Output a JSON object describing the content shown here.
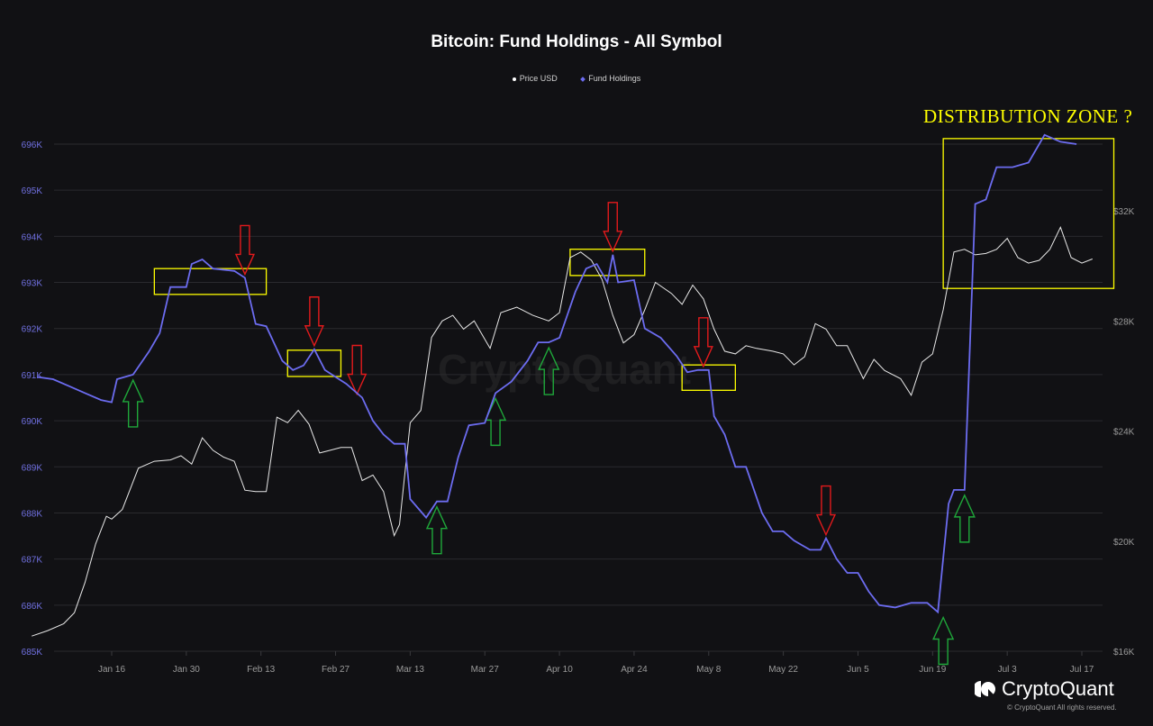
{
  "header": {
    "title": "Bitcoin: Fund Holdings - All Symbol",
    "legend": [
      {
        "label": "Price USD",
        "color": "#ffffff",
        "marker": "circle"
      },
      {
        "label": "Fund Holdings",
        "color": "#6c6cf0",
        "marker": "diamond"
      }
    ]
  },
  "annotation": {
    "zone_label": "DISTRIBUTION ZONE ?",
    "colors": {
      "zone": "#ffff00",
      "sell_arrow": "#e31a1c",
      "buy_arrow": "#1fa83a"
    }
  },
  "watermark": "CryptoQuant",
  "footer": {
    "brand": "CryptoQuant",
    "copyright": "© CryptoQuant All rights reserved."
  },
  "chart_data": {
    "type": "line",
    "title": "Bitcoin: Fund Holdings - All Symbol",
    "xlabel": "",
    "ylabel_left": "Fund Holdings",
    "ylabel_right": "Price USD",
    "x_ticks": [
      "Jan 16",
      "Jan 30",
      "Feb 13",
      "Feb 27",
      "Mar 13",
      "Mar 27",
      "Apr 10",
      "Apr 24",
      "May 8",
      "May 22",
      "Jun 5",
      "Jun 19",
      "Jul 3",
      "Jul 17"
    ],
    "y_left_ticks": [
      "685K",
      "686K",
      "687K",
      "688K",
      "689K",
      "690K",
      "691K",
      "692K",
      "693K",
      "694K",
      "695K",
      "696K"
    ],
    "y_left_range": [
      685000,
      696000
    ],
    "y_right_ticks": [
      "$16K",
      "$20K",
      "$24K",
      "$28K",
      "$32K"
    ],
    "y_right_range": [
      16000,
      32000
    ],
    "grid": true,
    "legend_position": "top",
    "series": [
      {
        "name": "Fund Holdings",
        "axis": "left",
        "color": "#6c6cf0",
        "points_date_value": [
          [
            "Jan 2",
            690950
          ],
          [
            "Jan 5",
            690900
          ],
          [
            "Jan 8",
            690750
          ],
          [
            "Jan 11",
            690600
          ],
          [
            "Jan 14",
            690450
          ],
          [
            "Jan 16",
            690400
          ],
          [
            "Jan 17",
            690900
          ],
          [
            "Jan 20",
            691000
          ],
          [
            "Jan 23",
            691500
          ],
          [
            "Jan 25",
            691900
          ],
          [
            "Jan 27",
            692900
          ],
          [
            "Jan 30",
            692900
          ],
          [
            "Jan 31",
            693400
          ],
          [
            "Feb 2",
            693500
          ],
          [
            "Feb 4",
            693300
          ],
          [
            "Feb 8",
            693250
          ],
          [
            "Feb 10",
            693100
          ],
          [
            "Feb 12",
            692100
          ],
          [
            "Feb 14",
            692050
          ],
          [
            "Feb 17",
            691300
          ],
          [
            "Feb 19",
            691100
          ],
          [
            "Feb 21",
            691200
          ],
          [
            "Feb 23",
            691550
          ],
          [
            "Feb 25",
            691100
          ],
          [
            "Feb 27",
            690950
          ],
          [
            "Mar 1",
            690800
          ],
          [
            "Mar 4",
            690500
          ],
          [
            "Mar 6",
            690000
          ],
          [
            "Mar 8",
            689700
          ],
          [
            "Mar 10",
            689500
          ],
          [
            "Mar 12",
            689500
          ],
          [
            "Mar 13",
            688300
          ],
          [
            "Mar 16",
            687900
          ],
          [
            "Mar 18",
            688250
          ],
          [
            "Mar 20",
            688250
          ],
          [
            "Mar 22",
            689200
          ],
          [
            "Mar 24",
            689900
          ],
          [
            "Mar 27",
            689950
          ],
          [
            "Mar 29",
            690600
          ],
          [
            "Apr 1",
            690850
          ],
          [
            "Apr 4",
            691300
          ],
          [
            "Apr 6",
            691700
          ],
          [
            "Apr 8",
            691700
          ],
          [
            "Apr 10",
            691800
          ],
          [
            "Apr 13",
            692800
          ],
          [
            "Apr 15",
            693300
          ],
          [
            "Apr 17",
            693400
          ],
          [
            "Apr 19",
            693000
          ],
          [
            "Apr 20",
            693600
          ],
          [
            "Apr 21",
            693000
          ],
          [
            "Apr 24",
            693050
          ],
          [
            "Apr 26",
            692000
          ],
          [
            "Apr 29",
            691800
          ],
          [
            "May 2",
            691400
          ],
          [
            "May 4",
            691050
          ],
          [
            "May 6",
            691100
          ],
          [
            "May 8",
            691100
          ],
          [
            "May 9",
            690100
          ],
          [
            "May 11",
            689700
          ],
          [
            "May 13",
            689000
          ],
          [
            "May 15",
            689000
          ],
          [
            "May 18",
            688000
          ],
          [
            "May 20",
            687600
          ],
          [
            "May 22",
            687600
          ],
          [
            "May 24",
            687400
          ],
          [
            "May 27",
            687200
          ],
          [
            "May 29",
            687200
          ],
          [
            "May 30",
            687450
          ],
          [
            "Jun 1",
            687000
          ],
          [
            "Jun 3",
            686700
          ],
          [
            "Jun 5",
            686700
          ],
          [
            "Jun 7",
            686300
          ],
          [
            "Jun 9",
            686000
          ],
          [
            "Jun 12",
            685950
          ],
          [
            "Jun 15",
            686050
          ],
          [
            "Jun 18",
            686050
          ],
          [
            "Jun 20",
            685850
          ],
          [
            "Jun 22",
            688200
          ],
          [
            "Jun 23",
            688500
          ],
          [
            "Jun 25",
            688500
          ],
          [
            "Jun 27",
            694700
          ],
          [
            "Jun 29",
            694800
          ],
          [
            "Jul 1",
            695500
          ],
          [
            "Jul 4",
            695500
          ],
          [
            "Jul 7",
            695600
          ],
          [
            "Jul 10",
            696200
          ],
          [
            "Jul 13",
            696050
          ],
          [
            "Jul 16",
            696000
          ]
        ]
      },
      {
        "name": "Price USD",
        "axis": "right",
        "color": "#ffffff",
        "points_date_value": [
          [
            "Jan 1",
            16550
          ],
          [
            "Jan 4",
            16750
          ],
          [
            "Jan 7",
            17000
          ],
          [
            "Jan 9",
            17400
          ],
          [
            "Jan 11",
            18500
          ],
          [
            "Jan 13",
            19900
          ],
          [
            "Jan 15",
            20900
          ],
          [
            "Jan 16",
            20800
          ],
          [
            "Jan 18",
            21150
          ],
          [
            "Jan 21",
            22650
          ],
          [
            "Jan 24",
            22900
          ],
          [
            "Jan 27",
            22950
          ],
          [
            "Jan 29",
            23100
          ],
          [
            "Jan 31",
            22800
          ],
          [
            "Feb 2",
            23750
          ],
          [
            "Feb 4",
            23300
          ],
          [
            "Feb 6",
            23050
          ],
          [
            "Feb 8",
            22900
          ],
          [
            "Feb 10",
            21850
          ],
          [
            "Feb 12",
            21800
          ],
          [
            "Feb 14",
            21800
          ],
          [
            "Feb 16",
            24500
          ],
          [
            "Feb 18",
            24300
          ],
          [
            "Feb 20",
            24750
          ],
          [
            "Feb 22",
            24250
          ],
          [
            "Feb 24",
            23200
          ],
          [
            "Feb 26",
            23300
          ],
          [
            "Feb 28",
            23400
          ],
          [
            "Mar 2",
            23400
          ],
          [
            "Mar 4",
            22200
          ],
          [
            "Mar 6",
            22400
          ],
          [
            "Mar 8",
            21800
          ],
          [
            "Mar 10",
            20200
          ],
          [
            "Mar 11",
            20600
          ],
          [
            "Mar 13",
            24300
          ],
          [
            "Mar 15",
            24750
          ],
          [
            "Mar 17",
            27400
          ],
          [
            "Mar 19",
            28000
          ],
          [
            "Mar 21",
            28200
          ],
          [
            "Mar 23",
            27700
          ],
          [
            "Mar 25",
            28000
          ],
          [
            "Mar 28",
            27000
          ],
          [
            "Mar 30",
            28300
          ],
          [
            "Apr 2",
            28500
          ],
          [
            "Apr 5",
            28200
          ],
          [
            "Apr 8",
            28000
          ],
          [
            "Apr 10",
            28300
          ],
          [
            "Apr 12",
            30300
          ],
          [
            "Apr 14",
            30500
          ],
          [
            "Apr 16",
            30200
          ],
          [
            "Apr 18",
            29500
          ],
          [
            "Apr 20",
            28200
          ],
          [
            "Apr 22",
            27200
          ],
          [
            "Apr 24",
            27500
          ],
          [
            "Apr 26",
            28400
          ],
          [
            "Apr 28",
            29400
          ],
          [
            "May 1",
            29000
          ],
          [
            "May 3",
            28600
          ],
          [
            "May 5",
            29300
          ],
          [
            "May 7",
            28800
          ],
          [
            "May 9",
            27700
          ],
          [
            "May 11",
            26900
          ],
          [
            "May 13",
            26800
          ],
          [
            "May 15",
            27100
          ],
          [
            "May 17",
            27000
          ],
          [
            "May 20",
            26900
          ],
          [
            "May 22",
            26800
          ],
          [
            "May 24",
            26400
          ],
          [
            "May 26",
            26700
          ],
          [
            "May 28",
            27900
          ],
          [
            "May 30",
            27700
          ],
          [
            "Jun 1",
            27100
          ],
          [
            "Jun 3",
            27100
          ],
          [
            "Jun 6",
            25900
          ],
          [
            "Jun 8",
            26600
          ],
          [
            "Jun 10",
            26200
          ],
          [
            "Jun 13",
            25900
          ],
          [
            "Jun 15",
            25300
          ],
          [
            "Jun 17",
            26500
          ],
          [
            "Jun 19",
            26800
          ],
          [
            "Jun 21",
            28400
          ],
          [
            "Jun 23",
            30500
          ],
          [
            "Jun 25",
            30600
          ],
          [
            "Jun 27",
            30400
          ],
          [
            "Jun 29",
            30450
          ],
          [
            "Jul 1",
            30600
          ],
          [
            "Jul 3",
            31000
          ],
          [
            "Jul 5",
            30300
          ],
          [
            "Jul 7",
            30100
          ],
          [
            "Jul 9",
            30200
          ],
          [
            "Jul 11",
            30600
          ],
          [
            "Jul 13",
            31400
          ],
          [
            "Jul 15",
            30300
          ],
          [
            "Jul 17",
            30100
          ],
          [
            "Jul 19",
            30250
          ]
        ]
      }
    ],
    "annotations": [
      {
        "type": "box",
        "label": "distribution zone",
        "from": "Jun 21",
        "to": "Jul 23",
        "range_left": [
          692870,
          696120
        ]
      },
      {
        "type": "box",
        "from": "Jan 24",
        "to": "Feb 14",
        "range_left": [
          692740,
          693300
        ]
      },
      {
        "type": "box",
        "from": "Feb 18",
        "to": "Feb 28",
        "range_left": [
          690960,
          691530
        ]
      },
      {
        "type": "box",
        "from": "Apr 12",
        "to": "Apr 26",
        "range_left": [
          693150,
          693720
        ]
      },
      {
        "type": "box",
        "from": "May 3",
        "to": "May 13",
        "range_left": [
          690660,
          691210
        ]
      },
      {
        "type": "sell_arrows",
        "at": [
          "Feb 10",
          "Feb 23",
          "Mar 3",
          "Apr 20",
          "May 7",
          "May 30"
        ]
      },
      {
        "type": "buy_arrows",
        "at": [
          "Jan 20",
          "Mar 18",
          "Mar 29",
          "Apr 8",
          "Jun 21",
          "Jun 25"
        ]
      }
    ]
  }
}
